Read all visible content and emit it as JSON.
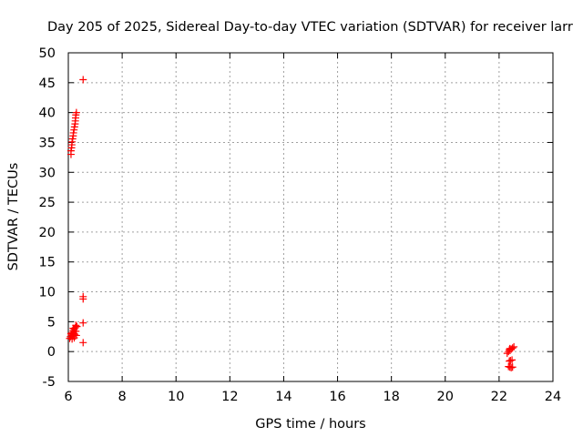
{
  "chart_data": {
    "type": "scatter",
    "title": "Day 205 of 2025, Sidereal Day-to-day VTEC variation (SDTVAR) for receiver larr",
    "xlabel": "GPS time / hours",
    "ylabel": "SDTVAR / TECUs",
    "xlim": [
      6,
      24
    ],
    "ylim": [
      -5,
      50
    ],
    "xticks": [
      6,
      8,
      10,
      12,
      14,
      16,
      18,
      20,
      22,
      24
    ],
    "yticks": [
      -5,
      0,
      5,
      10,
      15,
      20,
      25,
      30,
      35,
      40,
      45,
      50
    ],
    "grid": true,
    "marker": "+",
    "colors": {
      "marker": "#ff0000",
      "grid": "#a0a0a0",
      "axis": "#000000"
    },
    "series": [
      {
        "name": "SDTVAR",
        "points": [
          [
            6.1,
            33.0
          ],
          [
            6.1,
            33.6
          ],
          [
            6.12,
            34.1
          ],
          [
            6.13,
            34.6
          ],
          [
            6.14,
            35.1
          ],
          [
            6.16,
            35.6
          ],
          [
            6.18,
            36.1
          ],
          [
            6.19,
            36.6
          ],
          [
            6.21,
            37.1
          ],
          [
            6.23,
            37.6
          ],
          [
            6.25,
            38.1
          ],
          [
            6.26,
            38.6
          ],
          [
            6.27,
            39.1
          ],
          [
            6.28,
            39.6
          ],
          [
            6.3,
            40.0
          ],
          [
            6.55,
            45.5
          ],
          [
            6.55,
            9.2
          ],
          [
            6.55,
            8.8
          ],
          [
            6.55,
            4.8
          ],
          [
            6.55,
            1.5
          ],
          [
            6.05,
            2.2
          ],
          [
            6.08,
            2.5
          ],
          [
            6.1,
            3.0
          ],
          [
            6.12,
            2.8
          ],
          [
            6.14,
            3.2
          ],
          [
            6.16,
            2.6
          ],
          [
            6.18,
            3.5
          ],
          [
            6.2,
            3.0
          ],
          [
            6.22,
            3.8
          ],
          [
            6.24,
            2.9
          ],
          [
            6.26,
            4.0
          ],
          [
            6.28,
            3.4
          ],
          [
            6.3,
            2.7
          ],
          [
            6.32,
            4.2
          ],
          [
            6.22,
            2.3
          ],
          [
            6.14,
            2.1
          ],
          [
            6.18,
            3.9
          ],
          [
            6.28,
            4.4
          ],
          [
            22.3,
            -0.3
          ],
          [
            22.35,
            0.0
          ],
          [
            22.38,
            0.3
          ],
          [
            22.4,
            0.5
          ],
          [
            22.45,
            0.4
          ],
          [
            22.5,
            0.6
          ],
          [
            22.55,
            0.8
          ],
          [
            22.38,
            -1.6
          ],
          [
            22.42,
            -1.5
          ],
          [
            22.48,
            -1.4
          ],
          [
            22.35,
            -2.5
          ],
          [
            22.4,
            -2.6
          ],
          [
            22.45,
            -2.7
          ],
          [
            22.5,
            -2.6
          ]
        ]
      }
    ]
  }
}
